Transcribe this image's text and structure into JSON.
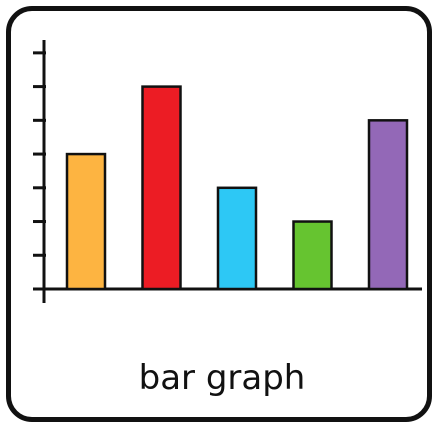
{
  "card": {
    "caption": "bar graph"
  },
  "chart_data": {
    "type": "bar",
    "categories": [
      "",
      "",
      "",
      "",
      ""
    ],
    "values": [
      4,
      6,
      3,
      2,
      5
    ],
    "colors": [
      "#FDB441",
      "#EC1C24",
      "#2DC8F5",
      "#66C430",
      "#9368B7"
    ],
    "ylim": [
      0,
      7.5
    ],
    "yticks": [
      1,
      2,
      3,
      4,
      5,
      6,
      7
    ],
    "title": "",
    "xlabel": "",
    "ylabel": "",
    "grid": false,
    "legend": "none"
  }
}
